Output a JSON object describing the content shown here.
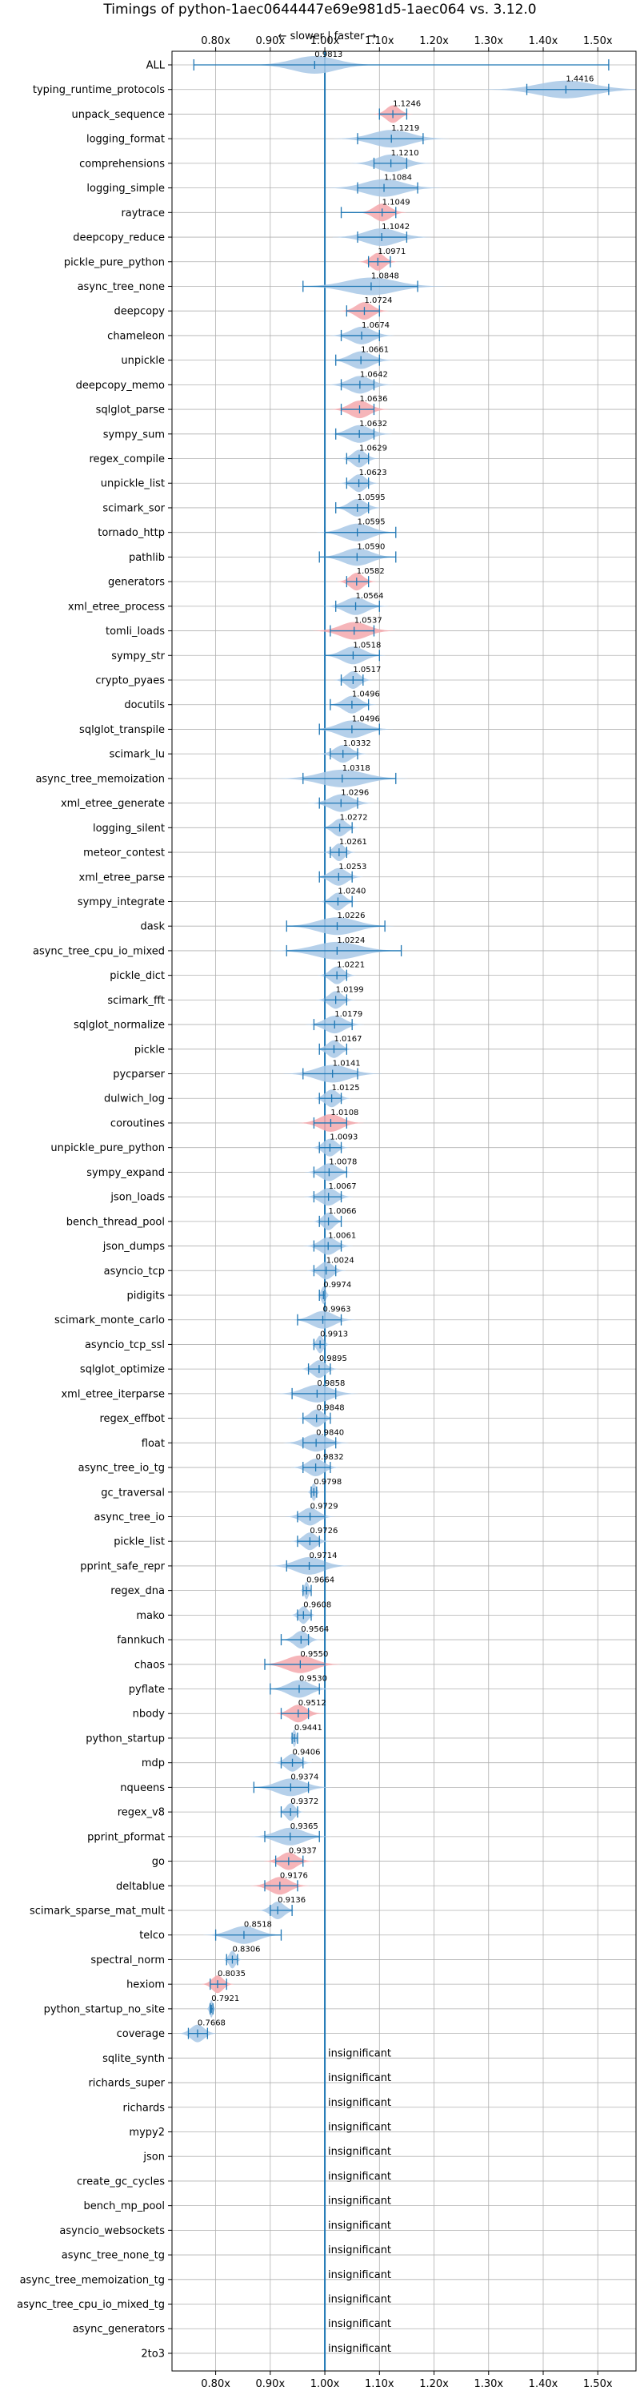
{
  "chart_data": {
    "type": "violin",
    "title": "Timings of python-1aec0644447e69e981d5-1aec064 vs. 3.12.0",
    "annotation": "← slower | faster →",
    "xlim": [
      0.72,
      1.57
    ],
    "ticks": [
      0.8,
      0.9,
      1.0,
      1.1,
      1.2,
      1.3,
      1.4,
      1.5
    ],
    "tick_labels": [
      "0.80x",
      "0.90x",
      "1.00x",
      "1.10x",
      "1.20x",
      "1.30x",
      "1.40x",
      "1.50x"
    ],
    "reference_line": 1.0,
    "insignificant_text": "insignificant",
    "colors": {
      "violin": "#a8c8e6",
      "violin_highlight": "#f4a8ad",
      "line": "#1f77b4",
      "grid": "#b0b0b0"
    },
    "benchmarks": [
      {
        "name": "ALL",
        "value": 0.9813,
        "min": 0.76,
        "max": 1.52,
        "spread": 0.04
      },
      {
        "name": "typing_runtime_protocols",
        "value": 1.4416,
        "min": 1.37,
        "max": 1.52,
        "spread": 0.05
      },
      {
        "name": "unpack_sequence",
        "value": 1.1246,
        "min": 1.1,
        "max": 1.15,
        "spread": 0.012,
        "highlight": true
      },
      {
        "name": "logging_format",
        "value": 1.1219,
        "min": 1.06,
        "max": 1.18,
        "spread": 0.035
      },
      {
        "name": "comprehensions",
        "value": 1.121,
        "min": 1.09,
        "max": 1.15,
        "spread": 0.025
      },
      {
        "name": "logging_simple",
        "value": 1.1084,
        "min": 1.06,
        "max": 1.17,
        "spread": 0.035
      },
      {
        "name": "raytrace",
        "value": 1.1049,
        "min": 1.03,
        "max": 1.13,
        "spread": 0.015,
        "highlight": true
      },
      {
        "name": "deepcopy_reduce",
        "value": 1.1042,
        "min": 1.06,
        "max": 1.15,
        "spread": 0.03
      },
      {
        "name": "pickle_pure_python",
        "value": 1.0971,
        "min": 1.08,
        "max": 1.12,
        "spread": 0.012,
        "highlight": true
      },
      {
        "name": "async_tree_none",
        "value": 1.0848,
        "min": 0.96,
        "max": 1.17,
        "spread": 0.045
      },
      {
        "name": "deepcopy",
        "value": 1.0724,
        "min": 1.04,
        "max": 1.1,
        "spread": 0.015,
        "highlight": true
      },
      {
        "name": "chameleon",
        "value": 1.0674,
        "min": 1.03,
        "max": 1.1,
        "spread": 0.02
      },
      {
        "name": "unpickle",
        "value": 1.0661,
        "min": 1.02,
        "max": 1.1,
        "spread": 0.02
      },
      {
        "name": "deepcopy_memo",
        "value": 1.0642,
        "min": 1.03,
        "max": 1.09,
        "spread": 0.02
      },
      {
        "name": "sqlglot_parse",
        "value": 1.0636,
        "min": 1.03,
        "max": 1.09,
        "spread": 0.018,
        "highlight": true
      },
      {
        "name": "sympy_sum",
        "value": 1.0632,
        "min": 1.02,
        "max": 1.09,
        "spread": 0.02
      },
      {
        "name": "regex_compile",
        "value": 1.0629,
        "min": 1.04,
        "max": 1.08,
        "spread": 0.012
      },
      {
        "name": "unpickle_list",
        "value": 1.0623,
        "min": 1.04,
        "max": 1.08,
        "spread": 0.012
      },
      {
        "name": "scimark_sor",
        "value": 1.0595,
        "min": 1.02,
        "max": 1.08,
        "spread": 0.015
      },
      {
        "name": "tornado_http",
        "value": 1.0595,
        "min": 1.0,
        "max": 1.13,
        "spread": 0.025
      },
      {
        "name": "pathlib",
        "value": 1.059,
        "min": 0.99,
        "max": 1.13,
        "spread": 0.025
      },
      {
        "name": "generators",
        "value": 1.0582,
        "min": 1.04,
        "max": 1.08,
        "spread": 0.012,
        "highlight": true
      },
      {
        "name": "xml_etree_process",
        "value": 1.0564,
        "min": 1.02,
        "max": 1.1,
        "spread": 0.02
      },
      {
        "name": "tomli_loads",
        "value": 1.0537,
        "min": 1.01,
        "max": 1.09,
        "spread": 0.025,
        "highlight": true
      },
      {
        "name": "sympy_str",
        "value": 1.0518,
        "min": 1.0,
        "max": 1.1,
        "spread": 0.02
      },
      {
        "name": "crypto_pyaes",
        "value": 1.0517,
        "min": 1.03,
        "max": 1.07,
        "spread": 0.012
      },
      {
        "name": "docutils",
        "value": 1.0496,
        "min": 1.01,
        "max": 1.08,
        "spread": 0.015
      },
      {
        "name": "sqlglot_transpile",
        "value": 1.0496,
        "min": 0.99,
        "max": 1.1,
        "spread": 0.025
      },
      {
        "name": "scimark_lu",
        "value": 1.0332,
        "min": 1.01,
        "max": 1.06,
        "spread": 0.015
      },
      {
        "name": "async_tree_memoization",
        "value": 1.0318,
        "min": 0.96,
        "max": 1.13,
        "spread": 0.04
      },
      {
        "name": "xml_etree_generate",
        "value": 1.0296,
        "min": 0.99,
        "max": 1.06,
        "spread": 0.02
      },
      {
        "name": "logging_silent",
        "value": 1.0272,
        "min": 1.0,
        "max": 1.05,
        "spread": 0.012
      },
      {
        "name": "meteor_contest",
        "value": 1.0261,
        "min": 1.01,
        "max": 1.04,
        "spread": 0.01
      },
      {
        "name": "xml_etree_parse",
        "value": 1.0253,
        "min": 0.99,
        "max": 1.05,
        "spread": 0.015
      },
      {
        "name": "sympy_integrate",
        "value": 1.024,
        "min": 1.0,
        "max": 1.05,
        "spread": 0.012
      },
      {
        "name": "dask",
        "value": 1.0226,
        "min": 0.93,
        "max": 1.11,
        "spread": 0.035
      },
      {
        "name": "async_tree_cpu_io_mixed",
        "value": 1.0224,
        "min": 0.93,
        "max": 1.14,
        "spread": 0.04
      },
      {
        "name": "pickle_dict",
        "value": 1.0221,
        "min": 1.0,
        "max": 1.04,
        "spread": 0.012
      },
      {
        "name": "scimark_fft",
        "value": 1.0199,
        "min": 1.0,
        "max": 1.04,
        "spread": 0.012
      },
      {
        "name": "sqlglot_normalize",
        "value": 1.0179,
        "min": 0.98,
        "max": 1.05,
        "spread": 0.018
      },
      {
        "name": "pickle",
        "value": 1.0167,
        "min": 0.99,
        "max": 1.04,
        "spread": 0.012
      },
      {
        "name": "pycparser",
        "value": 1.0141,
        "min": 0.96,
        "max": 1.06,
        "spread": 0.03
      },
      {
        "name": "dulwich_log",
        "value": 1.0125,
        "min": 0.99,
        "max": 1.03,
        "spread": 0.012
      },
      {
        "name": "coroutines",
        "value": 1.0108,
        "min": 0.98,
        "max": 1.04,
        "spread": 0.02,
        "highlight": true
      },
      {
        "name": "unpickle_pure_python",
        "value": 1.0093,
        "min": 0.99,
        "max": 1.03,
        "spread": 0.012
      },
      {
        "name": "sympy_expand",
        "value": 1.0078,
        "min": 0.98,
        "max": 1.04,
        "spread": 0.015
      },
      {
        "name": "json_loads",
        "value": 1.0067,
        "min": 0.98,
        "max": 1.03,
        "spread": 0.015
      },
      {
        "name": "bench_thread_pool",
        "value": 1.0066,
        "min": 0.99,
        "max": 1.03,
        "spread": 0.01
      },
      {
        "name": "json_dumps",
        "value": 1.0061,
        "min": 0.98,
        "max": 1.03,
        "spread": 0.015
      },
      {
        "name": "asyncio_tcp",
        "value": 1.0024,
        "min": 0.98,
        "max": 1.02,
        "spread": 0.012
      },
      {
        "name": "pidigits",
        "value": 0.9974,
        "min": 0.99,
        "max": 1.0,
        "spread": 0.004
      },
      {
        "name": "scimark_monte_carlo",
        "value": 0.9963,
        "min": 0.95,
        "max": 1.03,
        "spread": 0.02
      },
      {
        "name": "asyncio_tcp_ssl",
        "value": 0.9913,
        "min": 0.98,
        "max": 1.0,
        "spread": 0.006
      },
      {
        "name": "sqlglot_optimize",
        "value": 0.9895,
        "min": 0.97,
        "max": 1.01,
        "spread": 0.012
      },
      {
        "name": "xml_etree_iterparse",
        "value": 0.9858,
        "min": 0.94,
        "max": 1.02,
        "spread": 0.025
      },
      {
        "name": "regex_effbot",
        "value": 0.9848,
        "min": 0.96,
        "max": 1.01,
        "spread": 0.012
      },
      {
        "name": "float",
        "value": 0.984,
        "min": 0.96,
        "max": 1.02,
        "spread": 0.02
      },
      {
        "name": "async_tree_io_tg",
        "value": 0.9832,
        "min": 0.96,
        "max": 1.01,
        "spread": 0.015
      },
      {
        "name": "gc_traversal",
        "value": 0.9798,
        "min": 0.975,
        "max": 0.985,
        "spread": 0.004
      },
      {
        "name": "async_tree_io",
        "value": 0.9729,
        "min": 0.95,
        "max": 1.0,
        "spread": 0.015
      },
      {
        "name": "pickle_list",
        "value": 0.9726,
        "min": 0.95,
        "max": 0.99,
        "spread": 0.012
      },
      {
        "name": "pprint_safe_repr",
        "value": 0.9714,
        "min": 0.93,
        "max": 1.0,
        "spread": 0.025
      },
      {
        "name": "regex_dna",
        "value": 0.9664,
        "min": 0.96,
        "max": 0.975,
        "spread": 0.004
      },
      {
        "name": "mako",
        "value": 0.9608,
        "min": 0.95,
        "max": 0.975,
        "spread": 0.008
      },
      {
        "name": "fannkuch",
        "value": 0.9564,
        "min": 0.92,
        "max": 0.97,
        "spread": 0.012
      },
      {
        "name": "chaos",
        "value": 0.955,
        "min": 0.89,
        "max": 1.0,
        "spread": 0.025,
        "highlight": true
      },
      {
        "name": "pyflate",
        "value": 0.953,
        "min": 0.9,
        "max": 0.99,
        "spread": 0.02
      },
      {
        "name": "nbody",
        "value": 0.9512,
        "min": 0.92,
        "max": 0.97,
        "spread": 0.015,
        "highlight": true
      },
      {
        "name": "python_startup",
        "value": 0.9441,
        "min": 0.94,
        "max": 0.95,
        "spread": 0.003
      },
      {
        "name": "mdp",
        "value": 0.9406,
        "min": 0.92,
        "max": 0.96,
        "spread": 0.012
      },
      {
        "name": "nqueens",
        "value": 0.9374,
        "min": 0.87,
        "max": 0.97,
        "spread": 0.025
      },
      {
        "name": "regex_v8",
        "value": 0.9372,
        "min": 0.92,
        "max": 0.95,
        "spread": 0.008
      },
      {
        "name": "pprint_pformat",
        "value": 0.9365,
        "min": 0.89,
        "max": 0.99,
        "spread": 0.025
      },
      {
        "name": "go",
        "value": 0.9337,
        "min": 0.91,
        "max": 0.96,
        "spread": 0.015,
        "highlight": true
      },
      {
        "name": "deltablue",
        "value": 0.9176,
        "min": 0.89,
        "max": 0.95,
        "spread": 0.018,
        "highlight": true
      },
      {
        "name": "scimark_sparse_mat_mult",
        "value": 0.9136,
        "min": 0.9,
        "max": 0.94,
        "spread": 0.012
      },
      {
        "name": "telco",
        "value": 0.8518,
        "min": 0.8,
        "max": 0.92,
        "spread": 0.025
      },
      {
        "name": "spectral_norm",
        "value": 0.8306,
        "min": 0.82,
        "max": 0.84,
        "spread": 0.006
      },
      {
        "name": "hexiom",
        "value": 0.8035,
        "min": 0.79,
        "max": 0.82,
        "spread": 0.01,
        "highlight": true
      },
      {
        "name": "python_startup_no_site",
        "value": 0.7921,
        "min": 0.79,
        "max": 0.795,
        "spread": 0.003
      },
      {
        "name": "coverage",
        "value": 0.7668,
        "min": 0.75,
        "max": 0.785,
        "spread": 0.012
      },
      {
        "name": "sqlite_synth",
        "insignificant": true
      },
      {
        "name": "richards_super",
        "insignificant": true
      },
      {
        "name": "richards",
        "insignificant": true
      },
      {
        "name": "mypy2",
        "insignificant": true
      },
      {
        "name": "json",
        "insignificant": true
      },
      {
        "name": "create_gc_cycles",
        "insignificant": true
      },
      {
        "name": "bench_mp_pool",
        "insignificant": true
      },
      {
        "name": "asyncio_websockets",
        "insignificant": true
      },
      {
        "name": "async_tree_none_tg",
        "insignificant": true
      },
      {
        "name": "async_tree_memoization_tg",
        "insignificant": true
      },
      {
        "name": "async_tree_cpu_io_mixed_tg",
        "insignificant": true
      },
      {
        "name": "async_generators",
        "insignificant": true
      },
      {
        "name": "2to3",
        "insignificant": true
      }
    ]
  }
}
